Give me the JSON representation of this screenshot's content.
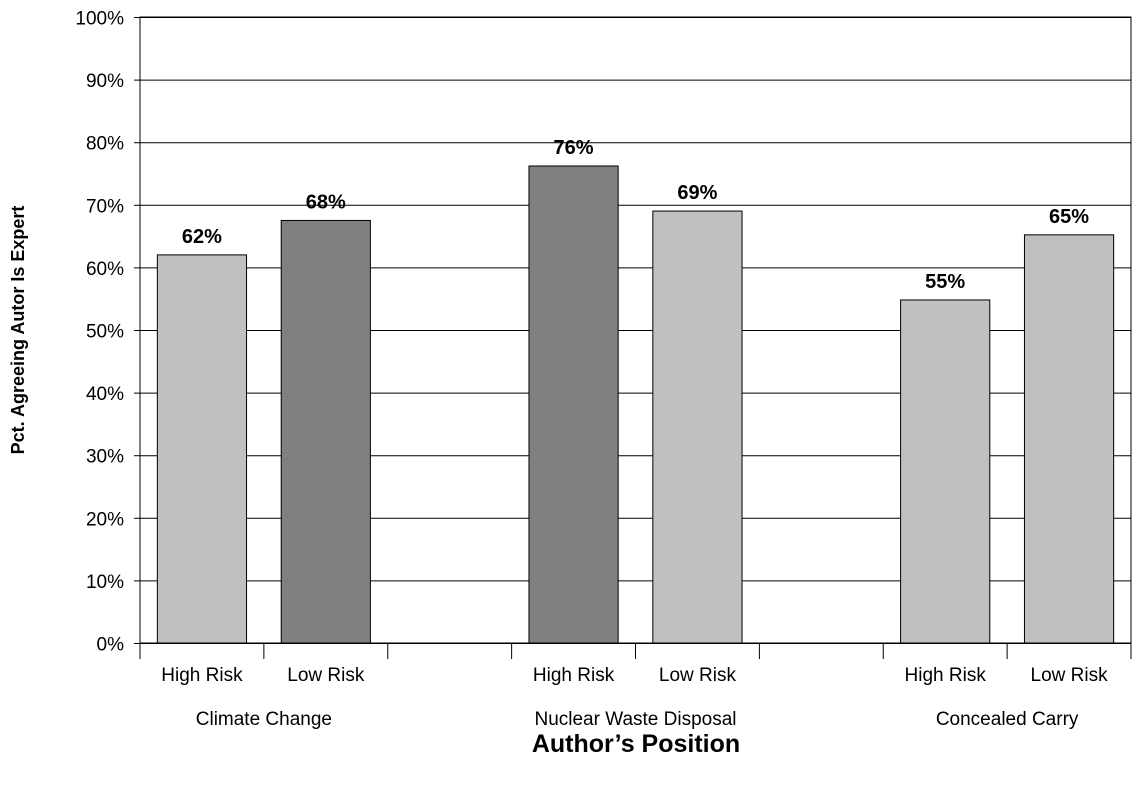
{
  "chart_data": {
    "type": "bar",
    "title": "",
    "xlabel": "Author’s Position",
    "ylabel": "Pct. Agreeing Autor Is Expert",
    "ylim": [
      0,
      100
    ],
    "yticks": [
      0,
      10,
      20,
      30,
      40,
      50,
      60,
      70,
      80,
      90,
      100
    ],
    "ytick_suffix": "%",
    "grid": true,
    "groups": [
      {
        "name": "Climate Change",
        "bars": [
          {
            "label": "High Risk",
            "value": 62,
            "display": "62%",
            "color": "#c0c0c0"
          },
          {
            "label": "Low Risk",
            "value": 67.5,
            "display": "68%",
            "color": "#808080"
          }
        ]
      },
      {
        "name": "Nuclear Waste Disposal",
        "bars": [
          {
            "label": "High Risk",
            "value": 76.2,
            "display": "76%",
            "color": "#808080"
          },
          {
            "label": "Low Risk",
            "value": 69,
            "display": "69%",
            "color": "#c0c0c0"
          }
        ]
      },
      {
        "name": "Concealed Carry",
        "bars": [
          {
            "label": "High Risk",
            "value": 54.8,
            "display": "55%",
            "color": "#c0c0c0"
          },
          {
            "label": "Low Risk",
            "value": 65.2,
            "display": "65%",
            "color": "#c0c0c0"
          }
        ]
      }
    ]
  }
}
